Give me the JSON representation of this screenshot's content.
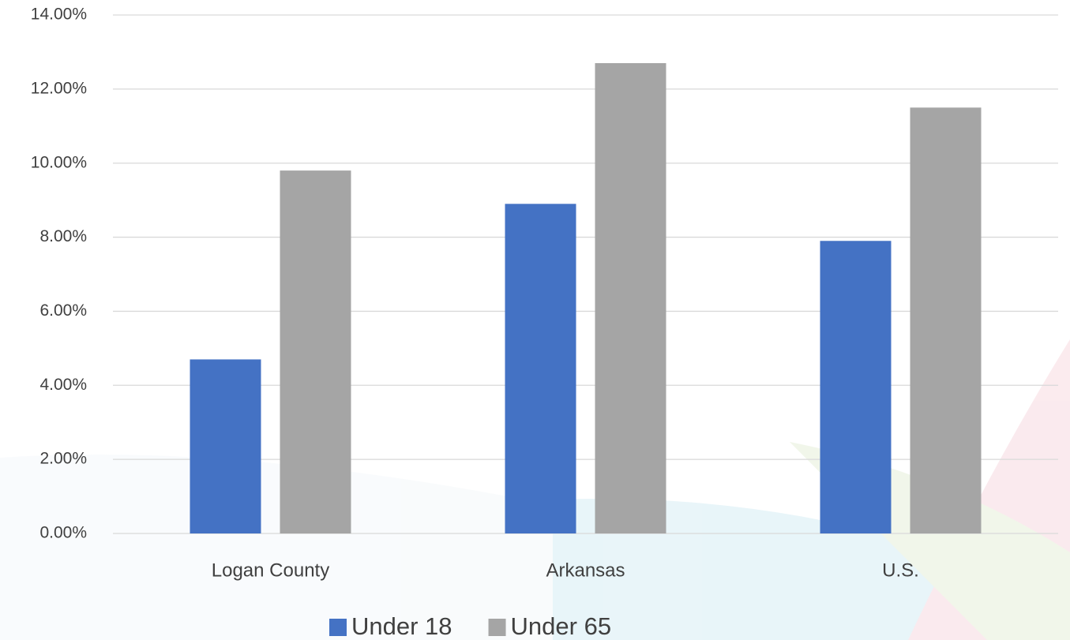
{
  "chart_data": {
    "type": "bar",
    "categories": [
      "Logan County",
      "Arkansas",
      "U.S."
    ],
    "series": [
      {
        "name": "Under 18",
        "color": "#4472c4",
        "values": [
          4.7,
          8.9,
          7.9
        ]
      },
      {
        "name": "Under 65",
        "color": "#a5a5a5",
        "values": [
          9.8,
          12.7,
          11.5
        ]
      }
    ],
    "ylim": [
      0,
      14
    ],
    "yticks": [
      {
        "value": 0,
        "label": "0.00%"
      },
      {
        "value": 2,
        "label": "2.00%"
      },
      {
        "value": 4,
        "label": "4.00%"
      },
      {
        "value": 6,
        "label": "6.00%"
      },
      {
        "value": 8,
        "label": "8.00%"
      },
      {
        "value": 10,
        "label": "10.00%"
      },
      {
        "value": 12,
        "label": "12.00%"
      },
      {
        "value": 14,
        "label": "14.00%"
      }
    ],
    "grid": true,
    "legend": "bottom"
  }
}
